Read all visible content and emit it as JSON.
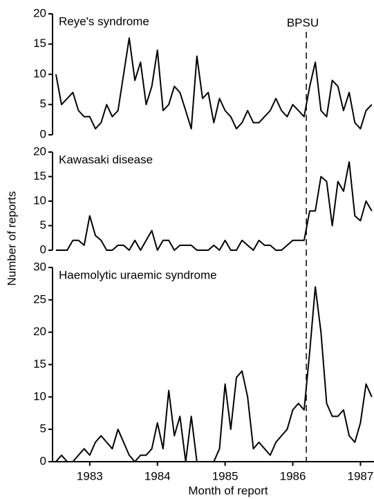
{
  "chart_data": {
    "type": "line",
    "x_label": "Month of report",
    "y_label": "Number of reports",
    "marker": {
      "label": "BPSU",
      "x": 1986.2
    },
    "xlim": [
      1982.45,
      1987.2
    ],
    "xticks": [
      1983,
      1984,
      1985,
      1986,
      1987
    ],
    "color": "#000000",
    "x": [
      1982.5,
      1982.583,
      1982.667,
      1982.75,
      1982.833,
      1982.917,
      1983.0,
      1983.083,
      1983.167,
      1983.25,
      1983.333,
      1983.417,
      1983.5,
      1983.583,
      1983.667,
      1983.75,
      1983.833,
      1983.917,
      1984.0,
      1984.083,
      1984.167,
      1984.25,
      1984.333,
      1984.417,
      1984.5,
      1984.583,
      1984.667,
      1984.75,
      1984.833,
      1984.917,
      1985.0,
      1985.083,
      1985.167,
      1985.25,
      1985.333,
      1985.417,
      1985.5,
      1985.583,
      1985.667,
      1985.75,
      1985.833,
      1985.917,
      1986.0,
      1986.083,
      1986.167,
      1986.25,
      1986.333,
      1986.417,
      1986.5,
      1986.583,
      1986.667,
      1986.75,
      1986.833,
      1986.917,
      1987.0,
      1987.083,
      1987.167
    ],
    "panels": [
      {
        "title": "Reye's syndrome",
        "ylim": [
          0,
          20
        ],
        "yticks": [
          0,
          5,
          10,
          15,
          20
        ],
        "values": [
          10,
          5,
          6,
          7,
          4,
          3,
          3,
          1,
          2,
          5,
          3,
          4,
          10,
          16,
          9,
          12,
          5,
          8,
          14,
          4,
          5,
          8,
          7,
          4,
          1,
          13,
          6,
          7,
          2,
          6,
          4,
          3,
          1,
          2,
          4,
          2,
          2,
          3,
          4,
          6,
          4,
          3,
          5,
          4,
          3,
          8,
          12,
          4,
          3,
          9,
          8,
          4,
          7,
          2,
          1,
          4,
          5
        ]
      },
      {
        "title": "Kawasaki disease",
        "ylim": [
          0,
          20
        ],
        "yticks": [
          0,
          5,
          10,
          15,
          20
        ],
        "values": [
          0,
          0,
          0,
          2,
          2,
          1,
          7,
          3,
          2,
          0,
          0,
          1,
          1,
          0,
          2,
          0,
          2,
          4,
          0,
          2,
          2,
          0,
          1,
          1,
          1,
          0,
          0,
          0,
          1,
          0,
          2,
          0,
          0,
          2,
          1,
          0,
          2,
          1,
          1,
          0,
          0,
          1,
          2,
          2,
          2,
          8,
          8,
          15,
          14,
          5,
          14,
          12,
          18,
          7,
          6,
          10,
          8
        ]
      },
      {
        "title": "Haemolytic uraemic syndrome",
        "ylim": [
          0,
          30
        ],
        "yticks": [
          0,
          5,
          10,
          15,
          20,
          25,
          30
        ],
        "values": [
          0,
          1,
          0,
          0,
          1,
          2,
          1,
          3,
          4,
          3,
          2,
          5,
          3,
          1,
          0,
          1,
          1,
          2,
          6,
          2,
          11,
          4,
          7,
          0,
          7,
          0,
          0,
          0,
          0,
          2,
          12,
          5,
          13,
          14,
          10,
          2,
          3,
          2,
          1,
          3,
          4,
          5,
          8,
          9,
          8,
          17,
          27,
          20,
          9,
          7,
          7,
          8,
          4,
          3,
          6,
          12,
          10
        ]
      }
    ]
  }
}
